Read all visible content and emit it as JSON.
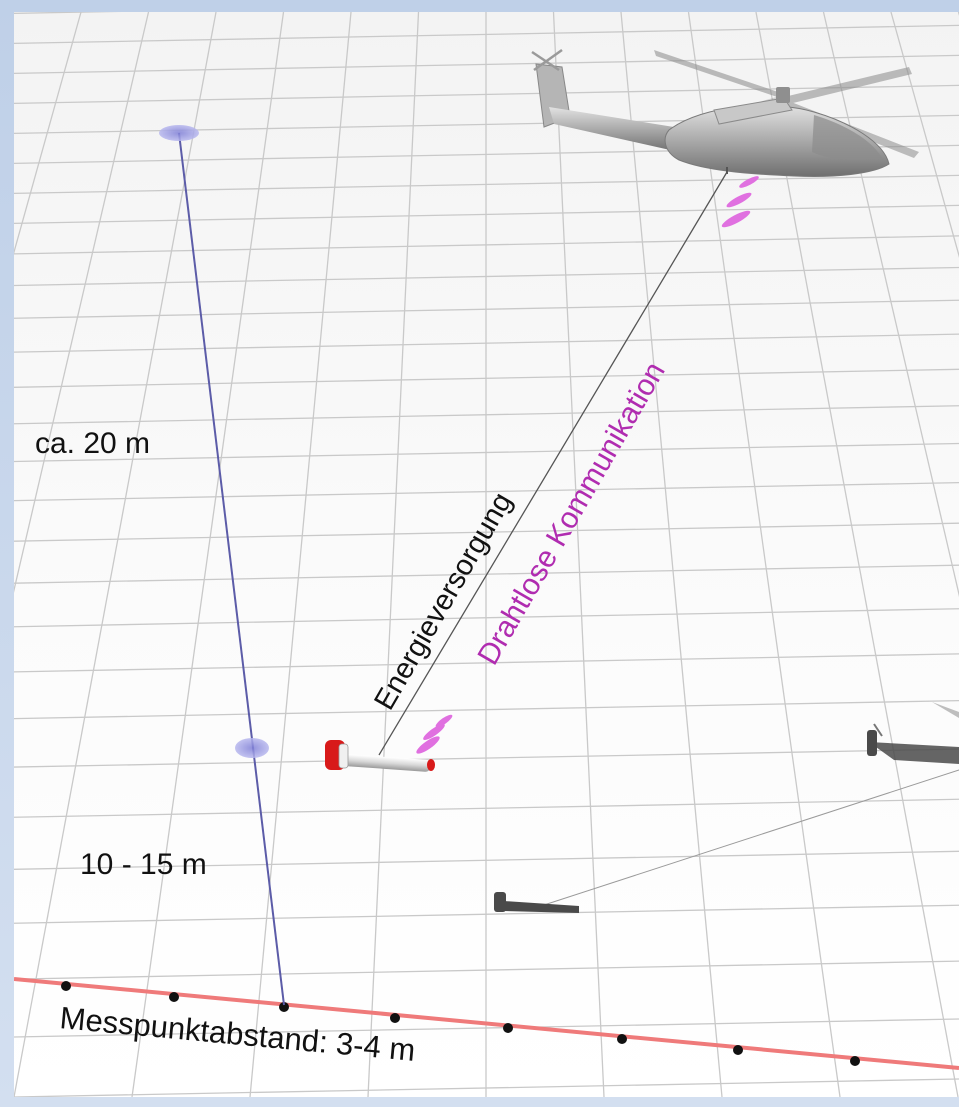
{
  "labels": {
    "height_label": "ca. 20 m",
    "offset_label": "10 - 15 m",
    "spacing_label": "Messpunktabstand: 3-4 m",
    "power_label": "Energieversorgung",
    "wireless_label": "Drahtlose Kommunikation"
  },
  "colors": {
    "grid": "#c9c9c9",
    "profile_line": "#ef7a7a",
    "measure_line": "#5c5ca8",
    "marker_fill": "#9b9bdf",
    "wireless": "#b02cb0",
    "signal": "#e070e0",
    "sensor_cap": "#d81a1a",
    "shadow": "#4a4a4a",
    "helicopter": "#a9a9a9"
  },
  "icons": {
    "helicopter": "helicopter-icon",
    "sensor": "sensor-probe-icon",
    "wireless": "wireless-signal-icon"
  }
}
